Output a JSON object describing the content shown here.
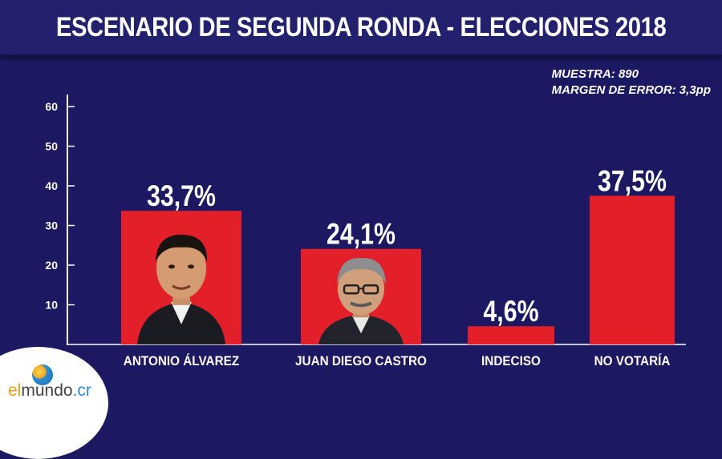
{
  "header": {
    "title": "ESCENARIO DE SEGUNDA RONDA - ELECCIONES 2018"
  },
  "meta": {
    "sample": "MUESTRA: 890",
    "margin": "MARGEN DE ERROR: 3,3pp"
  },
  "logo": {
    "prefix": "el",
    "name": "mundo",
    "suffix": ".cr"
  },
  "colors": {
    "background": "#1c1862",
    "bar": "#e3202a",
    "text": "#ffffff"
  },
  "chart_data": {
    "type": "bar",
    "title": "ESCENARIO DE SEGUNDA RONDA - ELECCIONES 2018",
    "categories": [
      "ANTONIO ÁLVAREZ",
      "JUAN DIEGO CASTRO",
      "INDECISO",
      "NO VOTARÍA"
    ],
    "values": [
      33.7,
      24.1,
      4.6,
      37.5
    ],
    "value_labels": [
      "33,7%",
      "24,1%",
      "4,6%",
      "37,5%"
    ],
    "yticks": [
      10,
      20,
      30,
      40,
      50,
      60
    ],
    "ylim": [
      0,
      62
    ],
    "xlabel": "",
    "ylabel": "",
    "grid": false,
    "legend": "none"
  }
}
